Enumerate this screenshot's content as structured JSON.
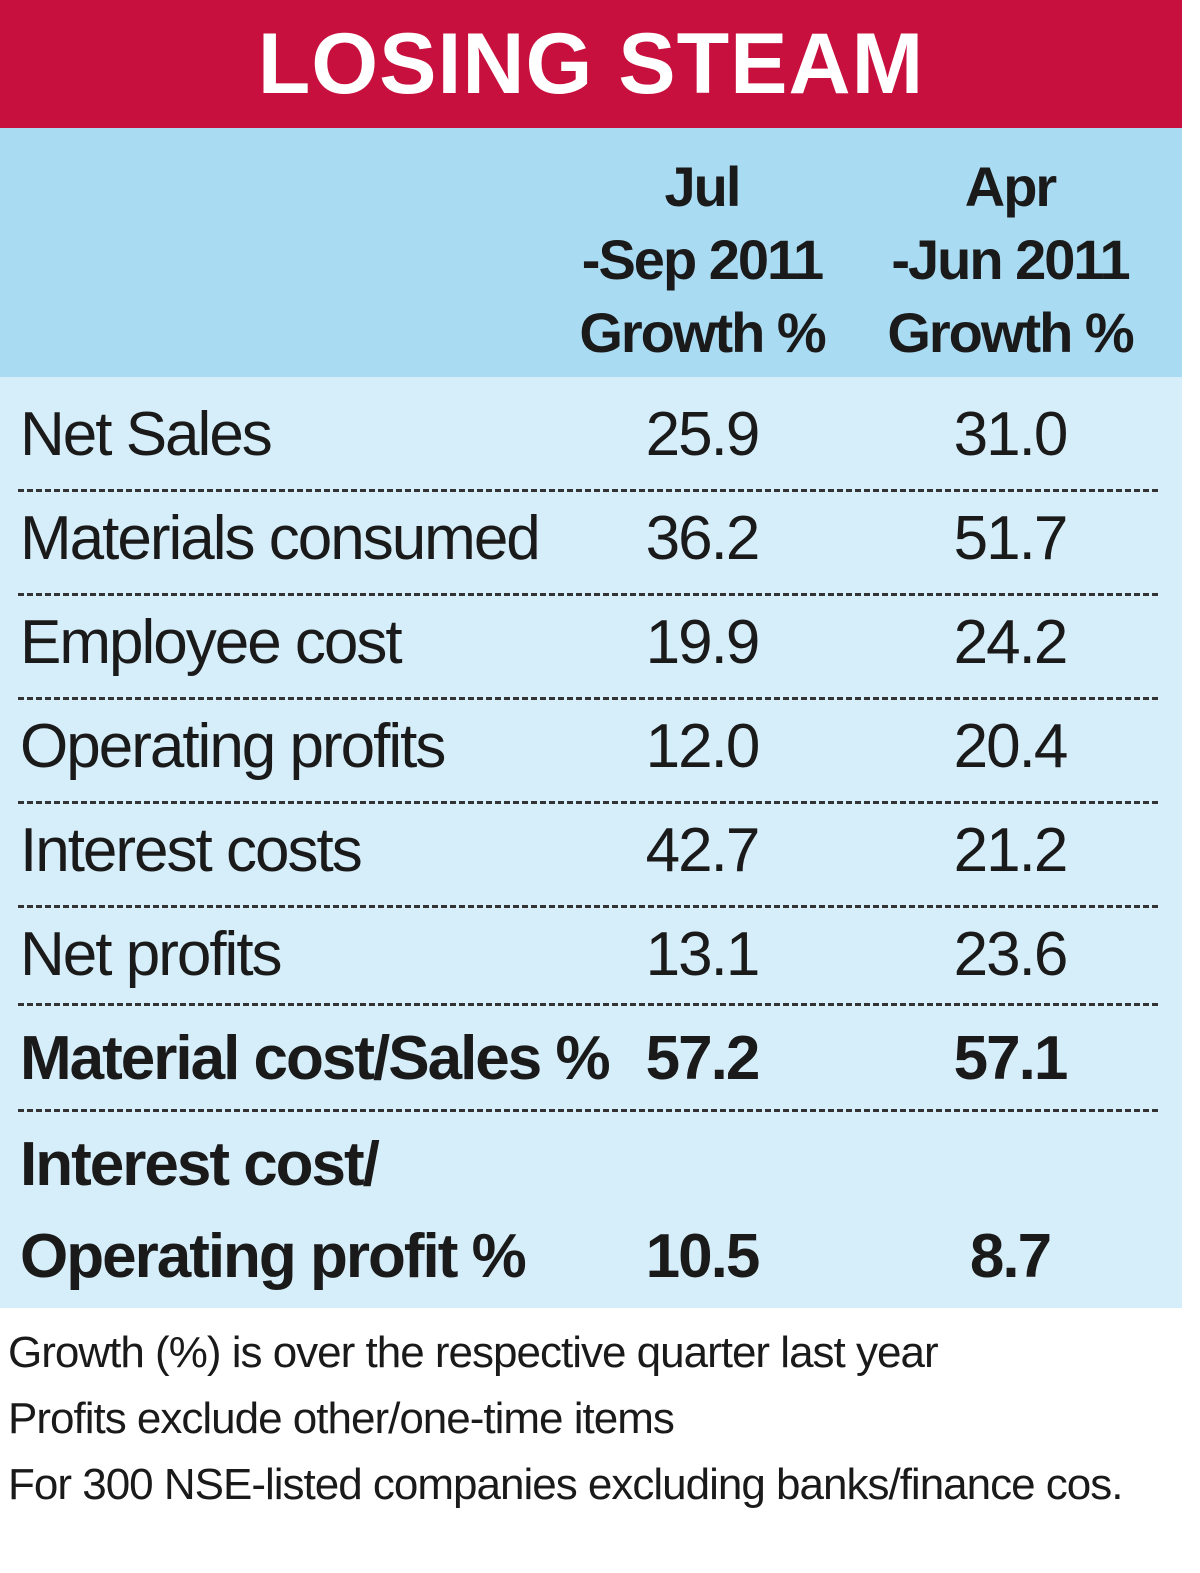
{
  "chart_data": {
    "type": "table",
    "title": "LOSING STEAM",
    "columns": [
      [
        "Jul",
        "-Sep 2011",
        "Growth %"
      ],
      [
        "Apr",
        "-Jun 2011",
        "Growth %"
      ]
    ],
    "rows": [
      {
        "label": "Net Sales",
        "values": [
          "25.9",
          "31.0"
        ],
        "bold": false
      },
      {
        "label": "Materials consumed",
        "values": [
          "36.2",
          "51.7"
        ],
        "bold": false
      },
      {
        "label": "Employee cost",
        "values": [
          "19.9",
          "24.2"
        ],
        "bold": false
      },
      {
        "label": "Operating profits",
        "values": [
          "12.0",
          "20.4"
        ],
        "bold": false
      },
      {
        "label": "Interest costs",
        "values": [
          "42.7",
          "21.2"
        ],
        "bold": false
      },
      {
        "label": "Net profits",
        "values": [
          "13.1",
          "23.6"
        ],
        "bold": false
      },
      {
        "label": "Material cost/Sales %",
        "values": [
          "57.2",
          "57.1"
        ],
        "bold": true
      },
      {
        "label": [
          "Interest cost/",
          "Operating profit %"
        ],
        "values": [
          "10.5",
          "8.7"
        ],
        "bold": true
      }
    ],
    "notes": [
      "Growth (%) is over the respective quarter last year",
      "Profits exclude other/one-time items",
      "For 300 NSE-listed companies excluding banks/finance cos."
    ],
    "colors": {
      "title_bar": "#c8103e",
      "header_band": "#a9dbf3",
      "body_band": "#d6eefa"
    }
  }
}
